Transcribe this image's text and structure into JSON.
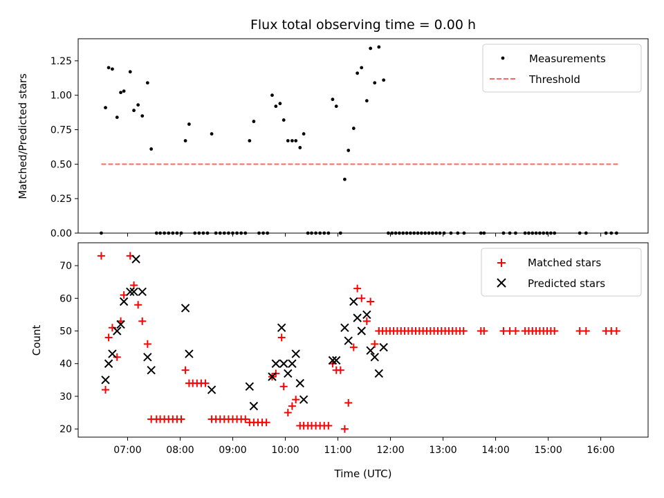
{
  "chart_data": {
    "title": "Flux total observing time = 0.00 h",
    "xlabel": "Time (UTC)",
    "xticks": [
      "07:00",
      "08:00",
      "09:00",
      "10:00",
      "11:00",
      "12:00",
      "13:00",
      "14:00",
      "15:00",
      "16:00"
    ],
    "xlim_hours": [
      6.06,
      16.9
    ],
    "top": {
      "type": "scatter",
      "ylabel": "Matched/Predicted stars",
      "ylim": [
        0,
        1.41
      ],
      "yticks": [
        "0.00",
        "0.25",
        "0.50",
        "0.75",
        "1.00",
        "1.25"
      ],
      "legend_position": "upper right",
      "series": [
        {
          "name": "Measurements",
          "color": "#000000",
          "marker": "dot",
          "points": [
            [
              6.5,
              0
            ],
            [
              6.58,
              0.91
            ],
            [
              6.64,
              1.2
            ],
            [
              6.71,
              1.19
            ],
            [
              6.8,
              0.84
            ],
            [
              6.87,
              1.02
            ],
            [
              6.93,
              1.03
            ],
            [
              7.05,
              1.17
            ],
            [
              7.12,
              0.89
            ],
            [
              7.2,
              0.93
            ],
            [
              7.28,
              0.85
            ],
            [
              7.38,
              1.09
            ],
            [
              7.45,
              0.61
            ],
            [
              7.55,
              0
            ],
            [
              7.62,
              0
            ],
            [
              7.7,
              0
            ],
            [
              7.78,
              0
            ],
            [
              7.86,
              0
            ],
            [
              7.94,
              0
            ],
            [
              8.02,
              0
            ],
            [
              8.1,
              0.67
            ],
            [
              8.17,
              0.79
            ],
            [
              8.28,
              0
            ],
            [
              8.36,
              0
            ],
            [
              8.44,
              0
            ],
            [
              8.52,
              0
            ],
            [
              8.6,
              0.72
            ],
            [
              8.68,
              0
            ],
            [
              8.76,
              0
            ],
            [
              8.84,
              0
            ],
            [
              8.92,
              0
            ],
            [
              9.0,
              0
            ],
            [
              9.08,
              0
            ],
            [
              9.16,
              0
            ],
            [
              9.24,
              0
            ],
            [
              9.32,
              0.67
            ],
            [
              9.4,
              0.81
            ],
            [
              9.5,
              0
            ],
            [
              9.58,
              0
            ],
            [
              9.66,
              0
            ],
            [
              9.75,
              1.0
            ],
            [
              9.82,
              0.92
            ],
            [
              9.9,
              0.94
            ],
            [
              9.97,
              0.82
            ],
            [
              10.05,
              0.67
            ],
            [
              10.13,
              0.67
            ],
            [
              10.2,
              0.67
            ],
            [
              10.28,
              0.62
            ],
            [
              10.35,
              0.72
            ],
            [
              10.43,
              0
            ],
            [
              10.5,
              0
            ],
            [
              10.58,
              0
            ],
            [
              10.66,
              0
            ],
            [
              10.74,
              0
            ],
            [
              10.82,
              0
            ],
            [
              10.9,
              0.97
            ],
            [
              10.97,
              0.92
            ],
            [
              11.05,
              0
            ],
            [
              11.13,
              0.39
            ],
            [
              11.2,
              0.6
            ],
            [
              11.3,
              0.76
            ],
            [
              11.37,
              1.16
            ],
            [
              11.45,
              1.2
            ],
            [
              11.55,
              0.96
            ],
            [
              11.62,
              1.34
            ],
            [
              11.7,
              1.09
            ],
            [
              11.78,
              1.35
            ],
            [
              11.87,
              1.11
            ],
            [
              11.96,
              0
            ],
            [
              12.03,
              0
            ],
            [
              12.1,
              0
            ],
            [
              12.17,
              0
            ],
            [
              12.24,
              0
            ],
            [
              12.31,
              0
            ],
            [
              12.38,
              0
            ],
            [
              12.45,
              0
            ],
            [
              12.52,
              0
            ],
            [
              12.59,
              0
            ],
            [
              12.66,
              0
            ],
            [
              12.73,
              0
            ],
            [
              12.8,
              0
            ],
            [
              12.87,
              0
            ],
            [
              12.94,
              0
            ],
            [
              13.02,
              0
            ],
            [
              13.15,
              0
            ],
            [
              13.28,
              0
            ],
            [
              13.4,
              0
            ],
            [
              13.72,
              0
            ],
            [
              13.78,
              0
            ],
            [
              14.15,
              0
            ],
            [
              14.27,
              0
            ],
            [
              14.38,
              0
            ],
            [
              14.56,
              0
            ],
            [
              14.63,
              0
            ],
            [
              14.7,
              0
            ],
            [
              14.77,
              0
            ],
            [
              14.84,
              0
            ],
            [
              14.91,
              0
            ],
            [
              14.98,
              0
            ],
            [
              15.05,
              0
            ],
            [
              15.12,
              0
            ],
            [
              15.6,
              0
            ],
            [
              15.72,
              0
            ],
            [
              16.1,
              0
            ],
            [
              16.2,
              0
            ],
            [
              16.3,
              0
            ]
          ]
        },
        {
          "name": "Threshold",
          "color": "#ff6666",
          "marker": "dashed-line",
          "points": [
            [
              6.5,
              0.5
            ],
            [
              16.35,
              0.5
            ]
          ]
        }
      ]
    },
    "bottom": {
      "type": "scatter",
      "ylabel": "Count",
      "ylim": [
        17.5,
        77
      ],
      "yticks": [
        "20",
        "30",
        "40",
        "50",
        "60",
        "70"
      ],
      "legend_position": "upper right",
      "series": [
        {
          "name": "Matched stars",
          "color": "#ff0000",
          "marker": "plus",
          "points": [
            [
              6.5,
              73
            ],
            [
              6.58,
              32
            ],
            [
              6.64,
              48
            ],
            [
              6.71,
              51
            ],
            [
              6.8,
              42
            ],
            [
              6.87,
              53
            ],
            [
              6.93,
              61
            ],
            [
              7.05,
              73
            ],
            [
              7.12,
              64
            ],
            [
              7.2,
              58
            ],
            [
              7.28,
              53
            ],
            [
              7.38,
              46
            ],
            [
              7.45,
              23
            ],
            [
              7.55,
              23
            ],
            [
              7.62,
              23
            ],
            [
              7.7,
              23
            ],
            [
              7.78,
              23
            ],
            [
              7.86,
              23
            ],
            [
              7.94,
              23
            ],
            [
              8.02,
              23
            ],
            [
              8.1,
              38
            ],
            [
              8.17,
              34
            ],
            [
              8.24,
              34
            ],
            [
              8.32,
              34
            ],
            [
              8.4,
              34
            ],
            [
              8.48,
              34
            ],
            [
              8.6,
              23
            ],
            [
              8.68,
              23
            ],
            [
              8.76,
              23
            ],
            [
              8.84,
              23
            ],
            [
              8.92,
              23
            ],
            [
              9.0,
              23
            ],
            [
              9.08,
              23
            ],
            [
              9.16,
              23
            ],
            [
              9.24,
              23
            ],
            [
              9.32,
              22
            ],
            [
              9.4,
              22
            ],
            [
              9.48,
              22
            ],
            [
              9.56,
              22
            ],
            [
              9.64,
              22
            ],
            [
              9.75,
              36
            ],
            [
              9.82,
              37
            ],
            [
              9.93,
              48
            ],
            [
              9.97,
              33
            ],
            [
              10.05,
              25
            ],
            [
              10.13,
              27
            ],
            [
              10.2,
              29
            ],
            [
              10.28,
              21
            ],
            [
              10.35,
              21
            ],
            [
              10.43,
              21
            ],
            [
              10.5,
              21
            ],
            [
              10.58,
              21
            ],
            [
              10.66,
              21
            ],
            [
              10.74,
              21
            ],
            [
              10.82,
              21
            ],
            [
              10.9,
              40
            ],
            [
              10.97,
              38
            ],
            [
              11.05,
              38
            ],
            [
              11.13,
              20
            ],
            [
              11.2,
              28
            ],
            [
              11.3,
              45
            ],
            [
              11.37,
              63
            ],
            [
              11.45,
              60
            ],
            [
              11.55,
              53
            ],
            [
              11.62,
              59
            ],
            [
              11.7,
              46
            ],
            [
              11.78,
              50
            ],
            [
              11.85,
              50
            ],
            [
              11.92,
              50
            ],
            [
              11.99,
              50
            ],
            [
              12.06,
              50
            ],
            [
              12.13,
              50
            ],
            [
              12.2,
              50
            ],
            [
              12.27,
              50
            ],
            [
              12.34,
              50
            ],
            [
              12.41,
              50
            ],
            [
              12.48,
              50
            ],
            [
              12.55,
              50
            ],
            [
              12.62,
              50
            ],
            [
              12.69,
              50
            ],
            [
              12.76,
              50
            ],
            [
              12.83,
              50
            ],
            [
              12.9,
              50
            ],
            [
              12.97,
              50
            ],
            [
              13.04,
              50
            ],
            [
              13.11,
              50
            ],
            [
              13.18,
              50
            ],
            [
              13.25,
              50
            ],
            [
              13.32,
              50
            ],
            [
              13.39,
              50
            ],
            [
              13.72,
              50
            ],
            [
              13.78,
              50
            ],
            [
              14.15,
              50
            ],
            [
              14.27,
              50
            ],
            [
              14.38,
              50
            ],
            [
              14.56,
              50
            ],
            [
              14.63,
              50
            ],
            [
              14.7,
              50
            ],
            [
              14.77,
              50
            ],
            [
              14.84,
              50
            ],
            [
              14.91,
              50
            ],
            [
              14.98,
              50
            ],
            [
              15.05,
              50
            ],
            [
              15.12,
              50
            ],
            [
              15.6,
              50
            ],
            [
              15.72,
              50
            ],
            [
              16.1,
              50
            ],
            [
              16.2,
              50
            ],
            [
              16.3,
              50
            ]
          ]
        },
        {
          "name": "Predicted stars",
          "color": "#000000",
          "marker": "x",
          "points": [
            [
              6.58,
              35
            ],
            [
              6.64,
              40
            ],
            [
              6.71,
              43
            ],
            [
              6.8,
              50
            ],
            [
              6.87,
              52
            ],
            [
              6.93,
              59
            ],
            [
              7.05,
              62
            ],
            [
              7.12,
              62
            ],
            [
              7.16,
              72
            ],
            [
              7.28,
              62
            ],
            [
              7.38,
              42
            ],
            [
              7.45,
              38
            ],
            [
              8.1,
              57
            ],
            [
              8.17,
              43
            ],
            [
              8.6,
              32
            ],
            [
              9.32,
              33
            ],
            [
              9.4,
              27
            ],
            [
              9.75,
              36
            ],
            [
              9.82,
              40
            ],
            [
              9.93,
              51
            ],
            [
              9.97,
              40
            ],
            [
              10.05,
              37
            ],
            [
              10.13,
              40
            ],
            [
              10.2,
              43
            ],
            [
              10.28,
              34
            ],
            [
              10.35,
              29
            ],
            [
              10.9,
              41
            ],
            [
              10.97,
              41
            ],
            [
              11.13,
              51
            ],
            [
              11.2,
              47
            ],
            [
              11.3,
              59
            ],
            [
              11.37,
              54
            ],
            [
              11.45,
              50
            ],
            [
              11.55,
              55
            ],
            [
              11.62,
              44
            ],
            [
              11.7,
              42
            ],
            [
              11.78,
              37
            ],
            [
              11.87,
              45
            ]
          ]
        }
      ]
    }
  }
}
